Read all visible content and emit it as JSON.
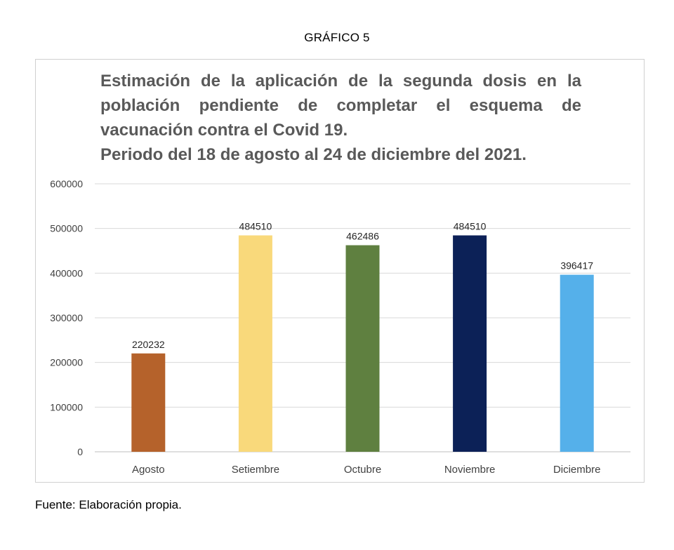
{
  "figure_label": "GRÁFICO 5",
  "source": "Fuente: Elaboración propia.",
  "chart_data": {
    "type": "bar",
    "title_lines": [
      "Estimación de la aplicación de la segunda dosis en la",
      "población pendiente de completar el esquema de",
      "vacunación contra el Covid 19.",
      "Periodo del 18 de agosto al 24 de diciembre del 2021."
    ],
    "categories": [
      "Agosto",
      "Setiembre",
      "Octubre",
      "Noviembre",
      "Diciembre"
    ],
    "values": [
      220232,
      484510,
      462486,
      484510,
      396417
    ],
    "colors": [
      "#b5622b",
      "#f9d97b",
      "#5f8040",
      "#0c2157",
      "#55b0ea"
    ],
    "ylim": [
      0,
      600000
    ],
    "yticks": [
      0,
      100000,
      200000,
      300000,
      400000,
      500000,
      600000
    ],
    "grid": true,
    "data_labels": true
  }
}
